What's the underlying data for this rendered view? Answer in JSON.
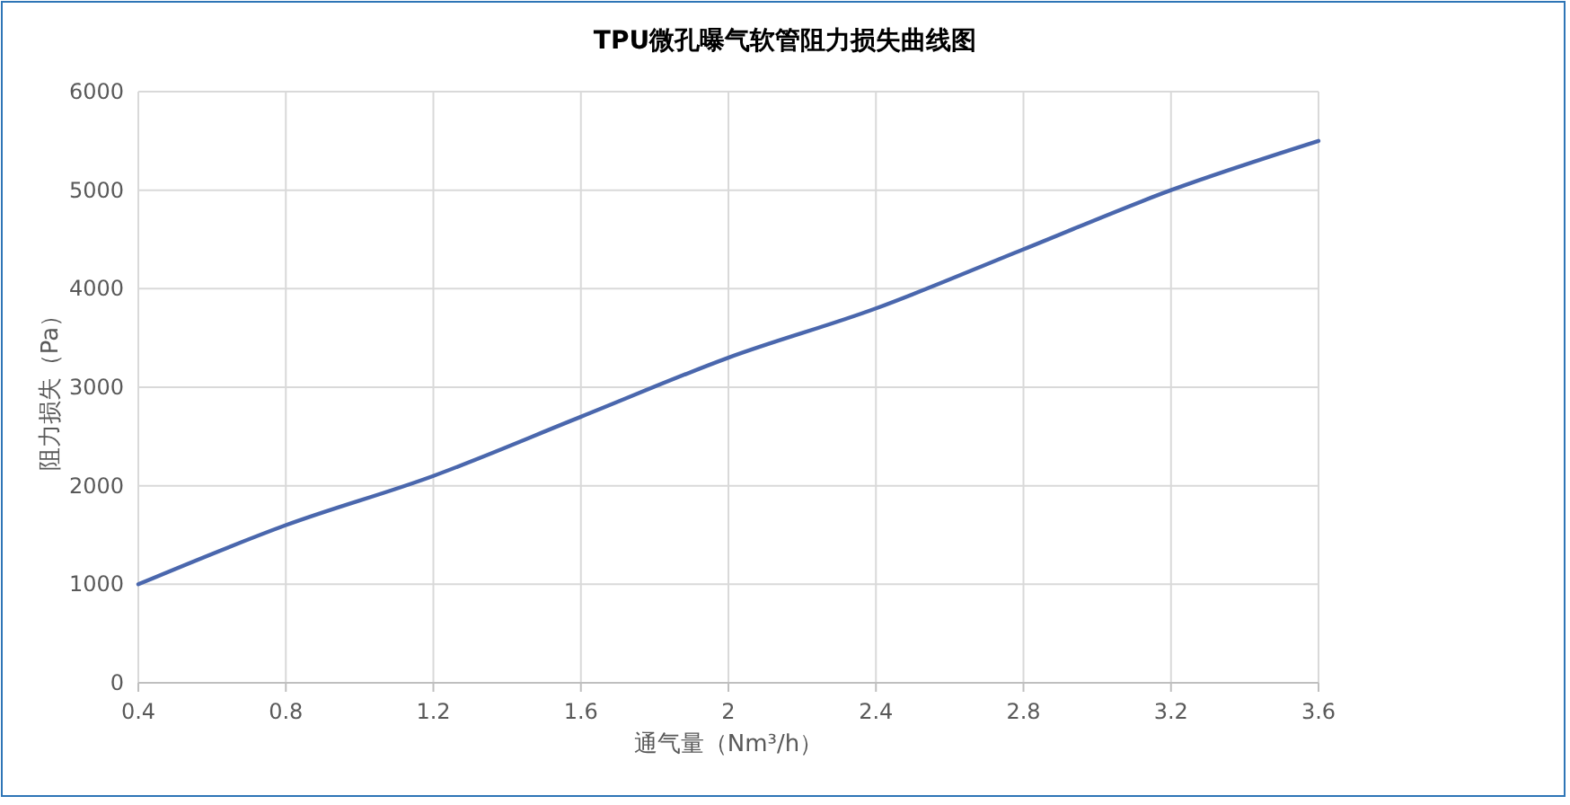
{
  "chart_data": {
    "type": "line",
    "title": "TPU微孔曝气软管阻力损失曲线图",
    "xlabel": "通气量（Nm³/h）",
    "ylabel": "阻力损失（Pa）",
    "x": [
      0.4,
      0.8,
      1.2,
      1.6,
      2,
      2.4,
      2.8,
      3.2,
      3.6
    ],
    "series": [
      {
        "color": "#4a67ad",
        "values": [
          1000,
          1600,
          2100,
          2700,
          3300,
          3800,
          4400,
          5000,
          5500
        ]
      }
    ],
    "xlim": [
      0.4,
      3.6
    ],
    "xticks": [
      0.4,
      0.8,
      1.2,
      1.6,
      2,
      2.4,
      2.8,
      3.2,
      3.6
    ],
    "ylim": [
      0,
      6000
    ],
    "yticks": [
      0,
      1000,
      2000,
      3000,
      4000,
      5000,
      6000
    ],
    "grid": true,
    "marker": "none",
    "line_style": "solid"
  }
}
